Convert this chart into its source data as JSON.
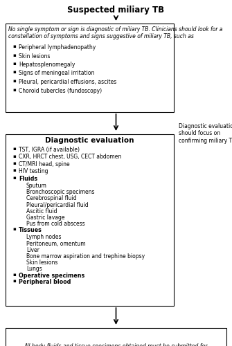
{
  "title": "Suspected miliary TB",
  "box1_italic_text1": "No single symptom or sign is diagnostic of miliary TB. Clinicians should look for a",
  "box1_italic_text2": "constellation of symptoms and signs suggestive of miliary TB, such as",
  "box1_bullets": [
    "Peripheral lymphadenopathy",
    "Skin lesions",
    "Hepatosplenomegaly",
    "Signs of meningeal irritation",
    "Pleural, pericardial effusions, ascites",
    "Choroid tubercles (fundoscopy)"
  ],
  "side_note": "Diagnostic evaluation\nshould focus on\nconfirming miliary TB",
  "box2_title": "Diagnostic evaluation",
  "box2_bullets": [
    "TST, IGRA (if available)",
    "CXR, HRCT chest, USG, CECT abdomen",
    "CT/MRI head, spine",
    "HIV testing"
  ],
  "box2_fluids_header": "Fluids",
  "box2_fluids": [
    "Sputum",
    "Bronchoscopic specimens",
    "Cerebrospinal fluid",
    "Pleural/pericardial fluid",
    "Ascitic fluid",
    "Gastric lavage",
    "Pus from cold abscess"
  ],
  "box2_tissues_header": "Tissues",
  "box2_tissues": [
    "Lymph nodes",
    "Peritoneum, omentum",
    "Liver",
    "Bone marrow aspiration and trephine biopsy",
    "Skin lesions",
    "Lungs"
  ],
  "box2_bold_bullets": [
    "Operative specimens",
    "Peripheral blood"
  ],
  "box3_text": "All body fluids and tissue specimens obtained must be submitted for\ncytopathological, histopathological examination; smear examination for AFB;\nconventional, rapid culture methods and DST; and molecular methods as\nappropriate for etiological confirmation",
  "bg_color": "#ffffff",
  "box_edge_color": "#000000",
  "text_color": "#000000",
  "arrow_color": "#000000"
}
